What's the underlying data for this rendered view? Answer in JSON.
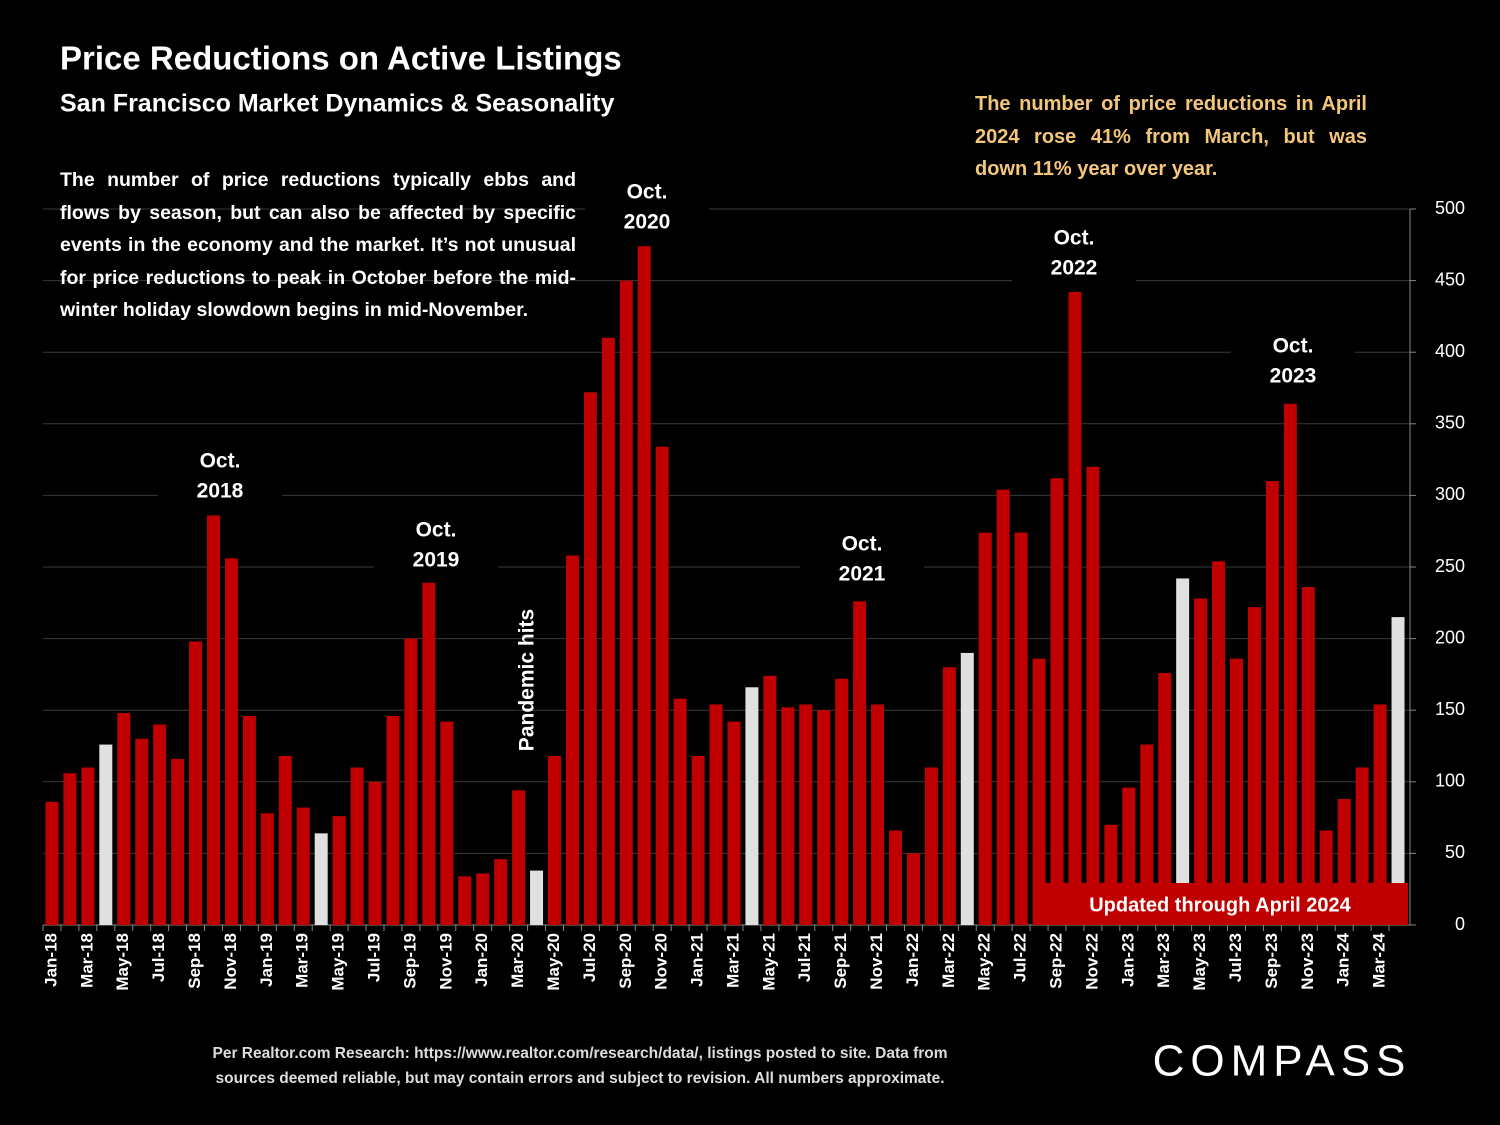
{
  "chart_data": {
    "type": "bar",
    "title": "Price Reductions on Active Listings",
    "subtitle": "San Francisco Market Dynamics & Seasonality",
    "description": "The number of price reductions typically ebbs and flows by season, but can also be affected by specific events in the economy and the market. It’s not unusual for price reductions to peak in October before the mid-winter holiday slowdown begins in mid-November.",
    "callout": "The number of price reductions in April 2024 rose 41% from March, but was down 11% year over year.",
    "updated_note": "Updated through April 2024",
    "annotations": [
      [
        "Oct.",
        "2018"
      ],
      [
        "Oct.",
        "2019"
      ],
      [
        "Oct.",
        "2020"
      ],
      [
        "Oct.",
        "2021"
      ],
      [
        "Oct.",
        "2022"
      ],
      [
        "Oct.",
        "2023"
      ]
    ],
    "rotated_annotation": "Pandemic hits",
    "source": [
      "Per Realtor.com Research:  https://www.realtor.com/research/data/, listings posted to site. Data from",
      "sources deemed reliable, but may contain errors and subject to revision. All numbers approximate."
    ],
    "logo": "COMPASS",
    "categories": [
      "Jan-18",
      null,
      "Mar-18",
      null,
      "May-18",
      null,
      "Jul-18",
      null,
      "Sep-18",
      null,
      "Nov-18",
      null,
      "Jan-19",
      null,
      "Mar-19",
      null,
      "May-19",
      null,
      "Jul-19",
      null,
      "Sep-19",
      null,
      "Nov-19",
      null,
      "Jan-20",
      null,
      "Mar-20",
      null,
      "May-20",
      null,
      "Jul-20",
      null,
      "Sep-20",
      null,
      "Nov-20",
      null,
      "Jan-21",
      null,
      "Mar-21",
      null,
      "May-21",
      null,
      "Jul-21",
      null,
      "Sep-21",
      null,
      "Nov-21",
      null,
      "Jan-22",
      null,
      "Mar-22",
      null,
      "May-22",
      null,
      "Jul-22",
      null,
      "Sep-22",
      null,
      "Nov-22",
      null,
      "Jan-23",
      null,
      "Mar-23",
      null,
      "May-23",
      null,
      "Jul-23",
      null,
      "Sep-23",
      null,
      "Nov-23",
      null,
      "Jan-24",
      null,
      "Mar-24",
      null
    ],
    "values": [
      86,
      106,
      110,
      126,
      148,
      130,
      140,
      116,
      198,
      286,
      256,
      146,
      78,
      118,
      82,
      64,
      76,
      110,
      100,
      146,
      200,
      239,
      142,
      34,
      36,
      46,
      94,
      38,
      118,
      258,
      372,
      410,
      450,
      474,
      334,
      158,
      118,
      154,
      142,
      166,
      174,
      152,
      154,
      150,
      172,
      226,
      154,
      66,
      50,
      110,
      180,
      190,
      274,
      304,
      274,
      186,
      312,
      442,
      320,
      70,
      96,
      126,
      176,
      242,
      228,
      254,
      186,
      222,
      310,
      364,
      236,
      66,
      88,
      110,
      154,
      215
    ],
    "colors": [
      "#c00000",
      "#c00000",
      "#c00000",
      "#e0e0e0",
      "#c00000",
      "#c00000",
      "#c00000",
      "#c00000",
      "#c00000",
      "#c00000",
      "#c00000",
      "#c00000",
      "#c00000",
      "#c00000",
      "#c00000",
      "#e0e0e0",
      "#c00000",
      "#c00000",
      "#c00000",
      "#c00000",
      "#c00000",
      "#c00000",
      "#c00000",
      "#c00000",
      "#c00000",
      "#c00000",
      "#c00000",
      "#e0e0e0",
      "#c00000",
      "#c00000",
      "#c00000",
      "#c00000",
      "#c00000",
      "#c00000",
      "#c00000",
      "#c00000",
      "#c00000",
      "#c00000",
      "#c00000",
      "#e0e0e0",
      "#c00000",
      "#c00000",
      "#c00000",
      "#c00000",
      "#c00000",
      "#c00000",
      "#c00000",
      "#c00000",
      "#c00000",
      "#c00000",
      "#c00000",
      "#e0e0e0",
      "#c00000",
      "#c00000",
      "#c00000",
      "#c00000",
      "#c00000",
      "#c00000",
      "#c00000",
      "#c00000",
      "#c00000",
      "#c00000",
      "#c00000",
      "#e0e0e0",
      "#c00000",
      "#c00000",
      "#c00000",
      "#c00000",
      "#c00000",
      "#c00000",
      "#c00000",
      "#c00000",
      "#c00000",
      "#c00000",
      "#c00000",
      "#e0e0e0"
    ],
    "ylim": [
      0,
      500
    ],
    "yticks": [
      0,
      50,
      100,
      150,
      200,
      250,
      300,
      350,
      400,
      450,
      500
    ],
    "grid": true
  }
}
